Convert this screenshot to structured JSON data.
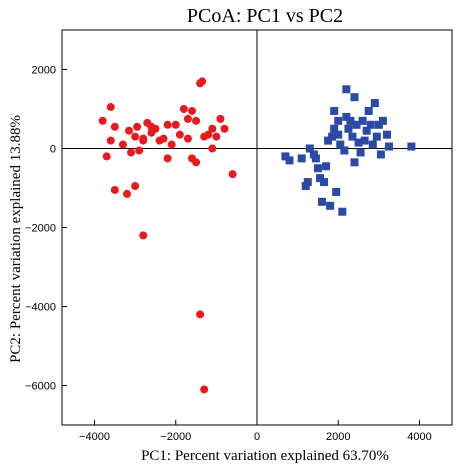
{
  "chart_data": {
    "type": "scatter",
    "title": "PCoA: PC1 vs PC2",
    "xlabel": "PC1: Percent variation explained 63.70%",
    "ylabel": "PC2: Percent variation explained 13.88%",
    "xlim": [
      -4800,
      4800
    ],
    "ylim": [
      -7000,
      3000
    ],
    "xticks": [
      -4000,
      -2000,
      0,
      2000,
      4000
    ],
    "xtick_labels": [
      "−4000",
      "−2000",
      "0",
      "2000",
      "4000"
    ],
    "yticks": [
      2000,
      0,
      -2000,
      -4000,
      -6000
    ],
    "ytick_labels": [
      "2000",
      "0",
      "−2000",
      "−4000",
      "−6000"
    ],
    "zero_lines": true,
    "grid": false,
    "legend": "none",
    "series": [
      {
        "marker": "circle",
        "color": "#e8191f",
        "points": [
          [
            -3800,
            700
          ],
          [
            -3600,
            1050
          ],
          [
            -3500,
            550
          ],
          [
            -3600,
            200
          ],
          [
            -3700,
            -200
          ],
          [
            -3300,
            100
          ],
          [
            -3500,
            -1050
          ],
          [
            -3200,
            -1150
          ],
          [
            -3000,
            -950
          ],
          [
            -3150,
            450
          ],
          [
            -3000,
            300
          ],
          [
            -2950,
            550
          ],
          [
            -2800,
            200
          ],
          [
            -2700,
            650
          ],
          [
            -2600,
            550
          ],
          [
            -2500,
            500
          ],
          [
            -2400,
            200
          ],
          [
            -2300,
            250
          ],
          [
            -2200,
            600
          ],
          [
            -2100,
            100
          ],
          [
            -2000,
            600
          ],
          [
            -1900,
            350
          ],
          [
            -1800,
            1000
          ],
          [
            -1700,
            750
          ],
          [
            -1600,
            950
          ],
          [
            -1500,
            700
          ],
          [
            -1400,
            1650
          ],
          [
            -1350,
            1700
          ],
          [
            -1300,
            300
          ],
          [
            -1200,
            350
          ],
          [
            -1100,
            500
          ],
          [
            -1000,
            300
          ],
          [
            -900,
            750
          ],
          [
            -800,
            500
          ],
          [
            -600,
            -650
          ],
          [
            -2800,
            250
          ],
          [
            -3100,
            -100
          ],
          [
            -2900,
            -50
          ],
          [
            -2200,
            -250
          ],
          [
            -1600,
            -250
          ],
          [
            -1500,
            -350
          ],
          [
            -1100,
            0
          ],
          [
            -2800,
            -2200
          ],
          [
            -1400,
            -4200
          ],
          [
            -1300,
            -6100
          ],
          [
            -1700,
            250
          ],
          [
            -2600,
            400
          ]
        ]
      },
      {
        "marker": "square",
        "color": "#2c4aa5",
        "points": [
          [
            700,
            -200
          ],
          [
            800,
            -300
          ],
          [
            1100,
            -250
          ],
          [
            1200,
            -950
          ],
          [
            1250,
            -850
          ],
          [
            1300,
            0
          ],
          [
            1400,
            -150
          ],
          [
            1450,
            -250
          ],
          [
            1500,
            -500
          ],
          [
            1550,
            -750
          ],
          [
            1600,
            -1350
          ],
          [
            1650,
            -850
          ],
          [
            1700,
            -450
          ],
          [
            1750,
            200
          ],
          [
            1800,
            -1450
          ],
          [
            1850,
            300
          ],
          [
            1900,
            500
          ],
          [
            1950,
            -1100
          ],
          [
            2000,
            350
          ],
          [
            2050,
            100
          ],
          [
            2100,
            -1600
          ],
          [
            2150,
            -50
          ],
          [
            2200,
            1500
          ],
          [
            2250,
            500
          ],
          [
            2300,
            700
          ],
          [
            2350,
            300
          ],
          [
            2400,
            1300
          ],
          [
            2450,
            600
          ],
          [
            2500,
            150
          ],
          [
            2550,
            -100
          ],
          [
            2600,
            700
          ],
          [
            2650,
            200
          ],
          [
            2700,
            450
          ],
          [
            2750,
            950
          ],
          [
            2800,
            600
          ],
          [
            2850,
            100
          ],
          [
            2900,
            1150
          ],
          [
            2950,
            300
          ],
          [
            3000,
            600
          ],
          [
            3050,
            -150
          ],
          [
            3100,
            700
          ],
          [
            3200,
            350
          ],
          [
            3250,
            50
          ],
          [
            3800,
            50
          ],
          [
            2000,
            700
          ],
          [
            2400,
            -350
          ],
          [
            2200,
            800
          ],
          [
            1900,
            950
          ]
        ]
      }
    ]
  }
}
